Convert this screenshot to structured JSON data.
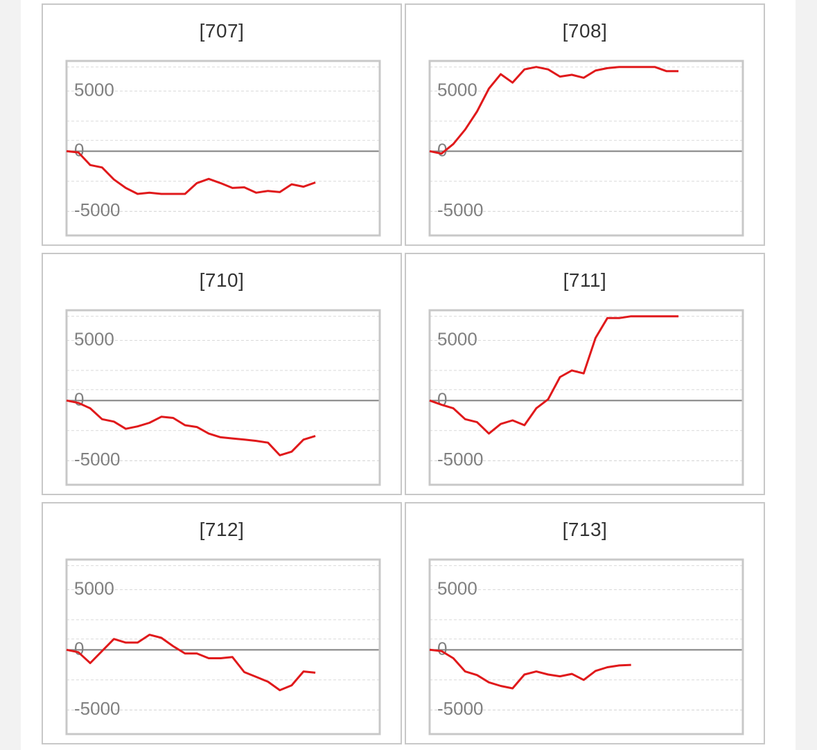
{
  "colors": {
    "series": "#e0191b",
    "zero_line": "#808080",
    "grid": "#d9d9d9",
    "frame": "#c8c8c8"
  },
  "chart_data": [
    {
      "type": "line",
      "title": "[707]",
      "yticks": [
        5000,
        0,
        -5000
      ],
      "ylim": [
        -7000,
        7500
      ],
      "grid": true,
      "x": [
        0,
        1,
        2,
        3,
        4,
        5,
        6,
        7,
        8,
        9,
        10,
        11,
        12,
        13,
        14,
        15,
        16,
        17,
        18,
        19,
        20,
        21
      ],
      "values": [
        0,
        -100,
        -1150,
        -1350,
        -2350,
        -3050,
        -3550,
        -3450,
        -3550,
        -3550,
        -3550,
        -2650,
        -2300,
        -2650,
        -3050,
        -3000,
        -3450,
        -3300,
        -3400,
        -2750,
        -2950,
        -2600
      ]
    },
    {
      "type": "line",
      "title": "[708]",
      "yticks": [
        5000,
        0,
        -5000
      ],
      "ylim": [
        -7000,
        7500
      ],
      "grid": true,
      "x": [
        0,
        1,
        2,
        3,
        4,
        5,
        6,
        7,
        8,
        9,
        10,
        11,
        12,
        13,
        14,
        15,
        16,
        17,
        18,
        19,
        20,
        21
      ],
      "values": [
        0,
        -200,
        600,
        1800,
        3300,
        5200,
        6400,
        5700,
        6800,
        7000,
        6800,
        6200,
        6350,
        6100,
        6700,
        6900,
        7000,
        7000,
        7000,
        7000,
        6650,
        6650
      ]
    },
    {
      "type": "line",
      "title": "[710]",
      "yticks": [
        5000,
        0,
        -5000
      ],
      "ylim": [
        -7000,
        7500
      ],
      "grid": true,
      "x": [
        0,
        1,
        2,
        3,
        4,
        5,
        6,
        7,
        8,
        9,
        10,
        11,
        12,
        13,
        14,
        15,
        16,
        17,
        18,
        19,
        20,
        21
      ],
      "values": [
        0,
        -200,
        -650,
        -1550,
        -1750,
        -2350,
        -2150,
        -1850,
        -1350,
        -1450,
        -2050,
        -2200,
        -2750,
        -3050,
        -3150,
        -3250,
        -3350,
        -3500,
        -4550,
        -4250,
        -3250,
        -2950
      ]
    },
    {
      "type": "line",
      "title": "[711]",
      "yticks": [
        5000,
        0,
        -5000
      ],
      "ylim": [
        -7000,
        7500
      ],
      "grid": true,
      "x": [
        0,
        1,
        2,
        3,
        4,
        5,
        6,
        7,
        8,
        9,
        10,
        11,
        12,
        13,
        14,
        15,
        16,
        17,
        18,
        19,
        20,
        21
      ],
      "values": [
        0,
        -350,
        -650,
        -1550,
        -1800,
        -2750,
        -1950,
        -1650,
        -2050,
        -650,
        100,
        1950,
        2500,
        2250,
        5200,
        6850,
        6850,
        7000,
        7000,
        7000,
        7000,
        7000
      ]
    },
    {
      "type": "line",
      "title": "[712]",
      "yticks": [
        5000,
        0,
        -5000
      ],
      "ylim": [
        -7000,
        7500
      ],
      "grid": true,
      "x": [
        0,
        1,
        2,
        3,
        4,
        5,
        6,
        7,
        8,
        9,
        10,
        11,
        12,
        13,
        14,
        15,
        16,
        17,
        18,
        19,
        20,
        21
      ],
      "values": [
        0,
        -200,
        -1100,
        -100,
        900,
        600,
        600,
        1250,
        1000,
        300,
        -300,
        -300,
        -700,
        -700,
        -600,
        -1850,
        -2250,
        -2650,
        -3350,
        -2950,
        -1800,
        -1900
      ]
    },
    {
      "type": "line",
      "title": "[713]",
      "yticks": [
        5000,
        0,
        -5000
      ],
      "ylim": [
        -7000,
        7500
      ],
      "grid": true,
      "x": [
        0,
        1,
        2,
        3,
        4,
        5,
        6,
        7,
        8,
        9,
        10,
        11,
        12,
        13,
        14,
        15,
        16,
        17
      ],
      "values": [
        0,
        -100,
        -700,
        -1800,
        -2100,
        -2700,
        -3000,
        -3200,
        -2050,
        -1800,
        -2050,
        -2200,
        -2000,
        -2500,
        -1750,
        -1450,
        -1300,
        -1250
      ]
    }
  ]
}
